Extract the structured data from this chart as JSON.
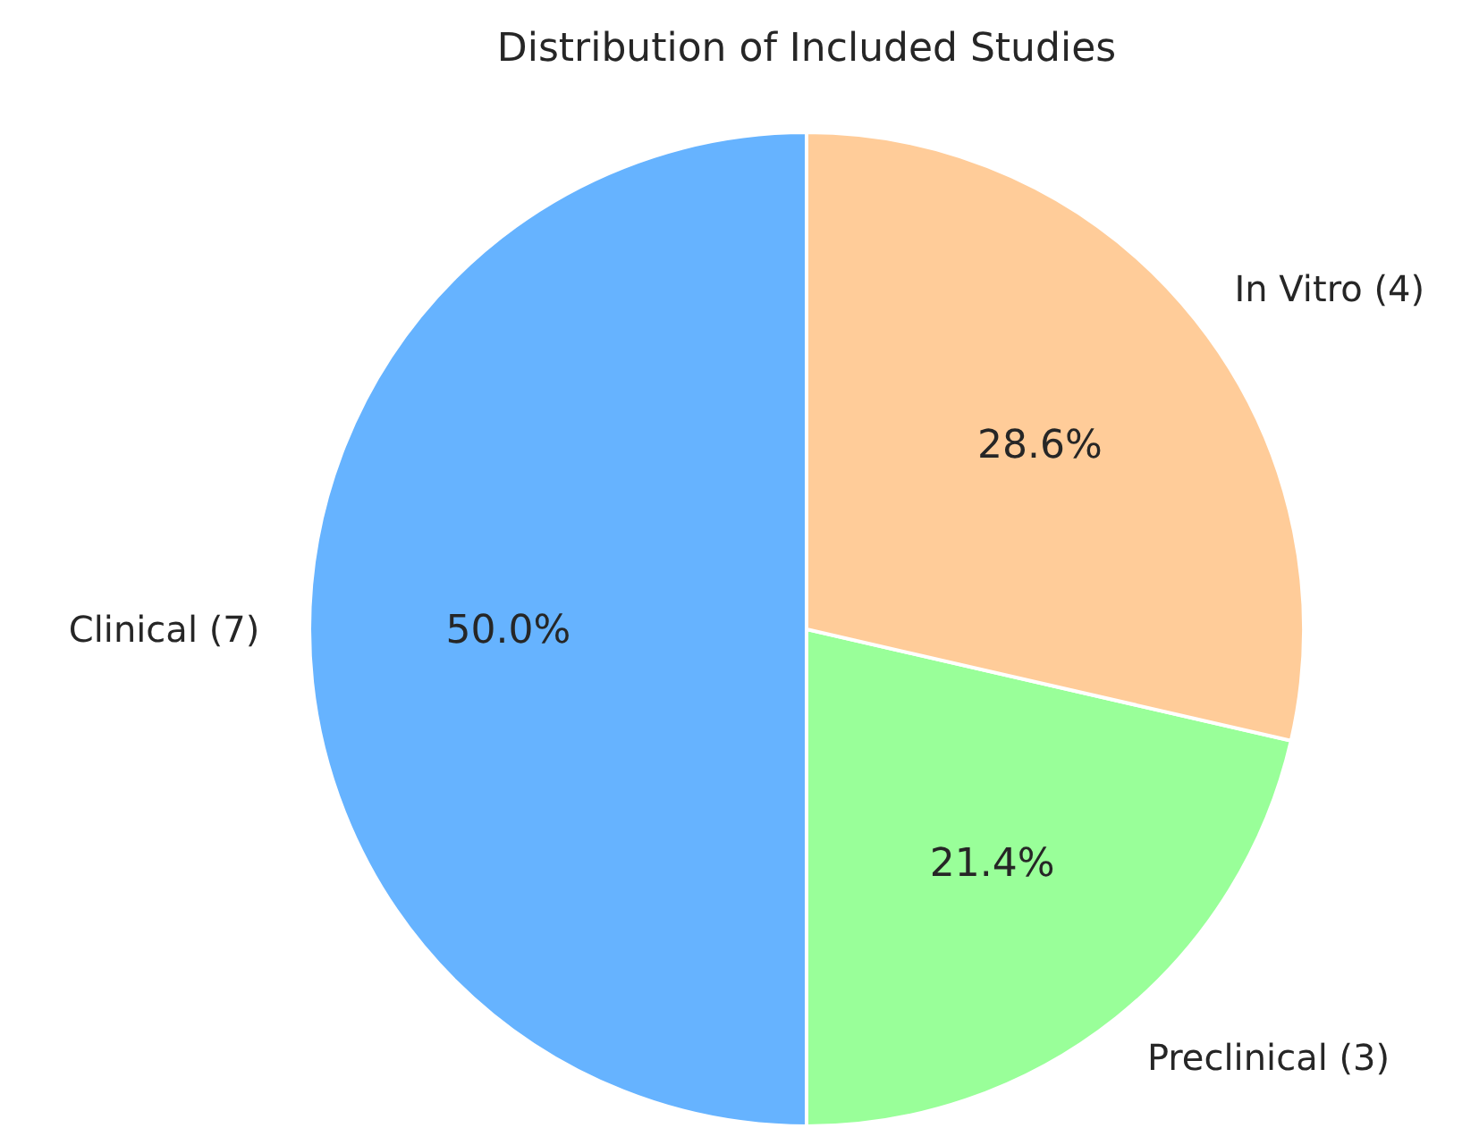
{
  "chart_data": {
    "type": "pie",
    "title": "Distribution of Included Studies",
    "categories": [
      "Clinical (7)",
      "Preclinical (3)",
      "In Vitro (4)"
    ],
    "values": [
      50.0,
      21.4,
      28.6
    ],
    "colors": [
      "#66b3ff",
      "#99ff99",
      "#ffcc99"
    ],
    "value_labels": [
      "50.0%",
      "21.4%",
      "28.6%"
    ]
  }
}
